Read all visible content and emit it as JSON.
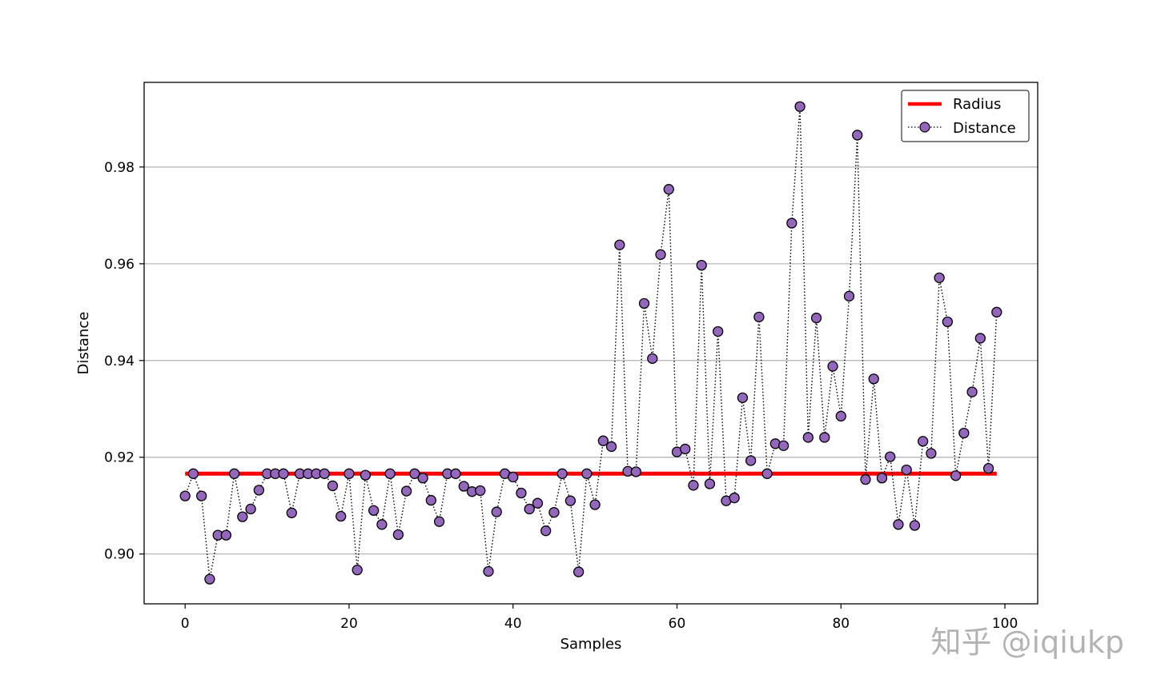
{
  "chart_data": {
    "type": "line",
    "title": "",
    "xlabel": "Samples",
    "ylabel": "Distance",
    "xlim": [
      -5,
      104
    ],
    "ylim": [
      0.8897,
      0.9975
    ],
    "xticks": [
      0,
      20,
      40,
      60,
      80,
      100
    ],
    "xtick_labels": [
      "0",
      "20",
      "40",
      "60",
      "80",
      "100"
    ],
    "yticks": [
      0.9,
      0.92,
      0.94,
      0.96,
      0.98
    ],
    "ytick_labels": [
      "0.90",
      "0.92",
      "0.94",
      "0.96",
      "0.98"
    ],
    "grid": "horizontal",
    "legend_position": "top-right",
    "series": [
      {
        "name": "Radius",
        "style": "solid",
        "color": "#ff0000",
        "x": [
          0,
          99
        ],
        "values": [
          0.9166,
          0.9166
        ]
      },
      {
        "name": "Distance",
        "style": "dotted-with-markers",
        "color": "#000000",
        "marker_color": "#9467bd",
        "x": [
          0,
          1,
          2,
          3,
          4,
          5,
          6,
          7,
          8,
          9,
          10,
          11,
          12,
          13,
          14,
          15,
          16,
          17,
          18,
          19,
          20,
          21,
          22,
          23,
          24,
          25,
          26,
          27,
          28,
          29,
          30,
          31,
          32,
          33,
          34,
          35,
          36,
          37,
          38,
          39,
          40,
          41,
          42,
          43,
          44,
          45,
          46,
          47,
          48,
          49,
          50,
          51,
          52,
          53,
          54,
          55,
          56,
          57,
          58,
          59,
          60,
          61,
          62,
          63,
          64,
          65,
          66,
          67,
          68,
          69,
          70,
          71,
          72,
          73,
          74,
          75,
          76,
          77,
          78,
          79,
          80,
          81,
          82,
          83,
          84,
          85,
          86,
          87,
          88,
          89,
          90,
          91,
          92,
          93,
          94,
          95,
          96,
          97,
          98,
          99
        ],
        "values": [
          0.912,
          0.9166,
          0.912,
          0.8948,
          0.9039,
          0.9039,
          0.9166,
          0.9077,
          0.9093,
          0.9132,
          0.9166,
          0.9166,
          0.9166,
          0.9085,
          0.9166,
          0.9166,
          0.9166,
          0.9166,
          0.9141,
          0.9078,
          0.9166,
          0.8967,
          0.9163,
          0.909,
          0.9061,
          0.9166,
          0.904,
          0.913,
          0.9166,
          0.9157,
          0.9111,
          0.9067,
          0.9166,
          0.9166,
          0.914,
          0.9129,
          0.9131,
          0.8964,
          0.9087,
          0.9166,
          0.9159,
          0.9126,
          0.9093,
          0.9105,
          0.9048,
          0.9086,
          0.9166,
          0.911,
          0.8963,
          0.9166,
          0.9102,
          0.9234,
          0.9222,
          0.9639,
          0.9171,
          0.917,
          0.9518,
          0.9404,
          0.9619,
          0.9754,
          0.9211,
          0.9217,
          0.9142,
          0.9597,
          0.9145,
          0.946,
          0.911,
          0.9116,
          0.9323,
          0.9193,
          0.949,
          0.9166,
          0.9228,
          0.9224,
          0.9684,
          0.9925,
          0.9241,
          0.9488,
          0.9241,
          0.9388,
          0.9285,
          0.9533,
          0.9866,
          0.9154,
          0.9362,
          0.9157,
          0.9201,
          0.9061,
          0.9174,
          0.9059,
          0.9233,
          0.9208,
          0.9571,
          0.948,
          0.9162,
          0.925,
          0.9335,
          0.9446,
          0.9177,
          0.95
        ]
      }
    ],
    "watermark": "知乎 @iqiukp"
  }
}
